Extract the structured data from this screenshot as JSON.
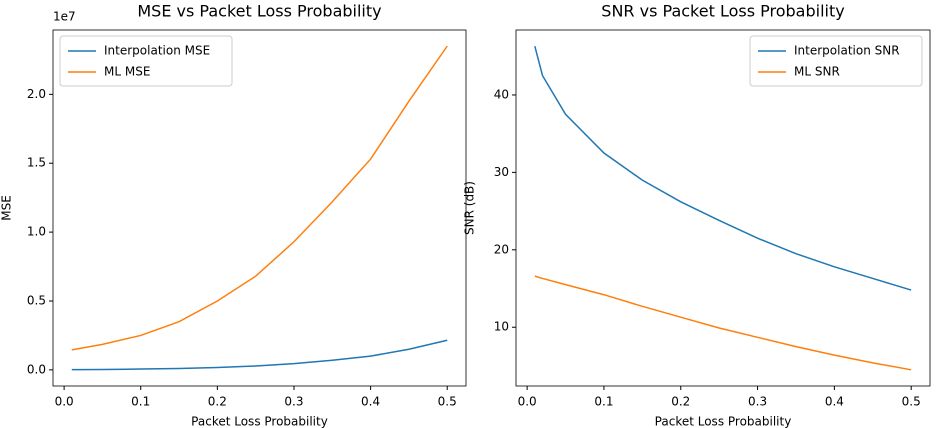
{
  "chart_data": [
    {
      "type": "line",
      "title": "MSE vs Packet Loss Probability",
      "x_label": "Packet Loss Probability",
      "y_label": "MSE",
      "y_offset_label": "1e7",
      "x": [
        0.01,
        0.02,
        0.05,
        0.1,
        0.15,
        0.2,
        0.25,
        0.3,
        0.35,
        0.4,
        0.45,
        0.5
      ],
      "series": [
        {
          "name": "Interpolation MSE",
          "color": "#1f77b4",
          "values": [
            0.002,
            0.002,
            0.003,
            0.006,
            0.01,
            0.017,
            0.028,
            0.045,
            0.07,
            0.1,
            0.15,
            0.215
          ]
        },
        {
          "name": "ML MSE",
          "color": "#ff7f0e",
          "values": [
            0.145,
            0.155,
            0.185,
            0.25,
            0.35,
            0.5,
            0.68,
            0.93,
            1.22,
            1.53,
            1.95,
            2.35
          ]
        }
      ],
      "xlim": [
        -0.0145,
        0.5245
      ],
      "xticks": [
        {
          "value": 0,
          "label": "0.0"
        },
        0.1,
        0.2,
        0.3,
        0.4,
        0.5
      ],
      "ylim": [
        -0.117,
        2.467
      ],
      "yticks": [
        {
          "value": 0,
          "label": "0.0"
        },
        0.5,
        {
          "value": 1,
          "label": "1.0"
        },
        1.5,
        {
          "value": 2,
          "label": "2.0"
        }
      ],
      "legend": "upper-left"
    },
    {
      "type": "line",
      "title": "SNR vs Packet Loss Probability",
      "x_label": "Packet Loss Probability",
      "y_label": "SNR (dB)",
      "x": [
        0.01,
        0.02,
        0.05,
        0.1,
        0.15,
        0.2,
        0.25,
        0.3,
        0.35,
        0.4,
        0.45,
        0.5
      ],
      "series": [
        {
          "name": "Interpolation SNR",
          "color": "#1f77b4",
          "values": [
            46.3,
            42.5,
            37.5,
            32.5,
            29.0,
            26.2,
            23.8,
            21.5,
            19.5,
            17.8,
            16.3,
            14.8
          ]
        },
        {
          "name": "ML SNR",
          "color": "#ff7f0e",
          "values": [
            16.6,
            16.3,
            15.5,
            14.2,
            12.7,
            11.3,
            9.9,
            8.7,
            7.5,
            6.4,
            5.4,
            4.5
          ]
        }
      ],
      "xlim": [
        -0.0145,
        0.5245
      ],
      "xticks": [
        {
          "value": 0,
          "label": "0.0"
        },
        0.1,
        0.2,
        0.3,
        0.4,
        0.5
      ],
      "ylim": [
        2.41,
        48.39
      ],
      "yticks": [
        10,
        20,
        30,
        40
      ],
      "legend": "upper-right"
    }
  ]
}
